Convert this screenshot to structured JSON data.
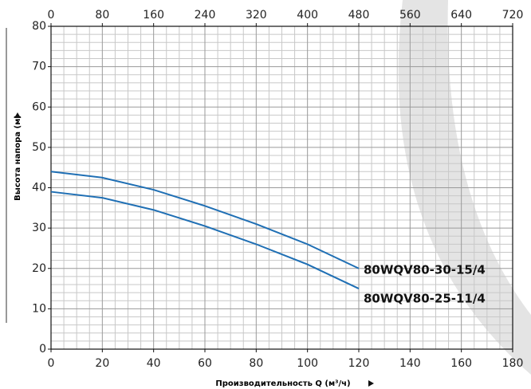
{
  "chart_data": {
    "type": "line",
    "ylabel": "Высота напора (м)",
    "xlabel": "Производительность Q (м³/ч)",
    "x": [
      0,
      20,
      40,
      60,
      80,
      100,
      120
    ],
    "series": [
      {
        "name": "80WQV80-30-15/4",
        "color": "#1f6fb4",
        "values": [
          44,
          42.5,
          39.5,
          35.5,
          31,
          26,
          20
        ]
      },
      {
        "name": "80WQV80-25-11/4",
        "color": "#1f6fb4",
        "values": [
          39,
          37.5,
          34.5,
          30.5,
          26,
          21,
          15
        ]
      }
    ],
    "xlim": [
      0,
      180
    ],
    "xticks": [
      0,
      20,
      40,
      60,
      80,
      100,
      120,
      140,
      160,
      180
    ],
    "x2lim": [
      0,
      720
    ],
    "x2ticks": [
      0,
      80,
      160,
      240,
      320,
      400,
      480,
      560,
      640,
      720
    ],
    "ylim": [
      0,
      80
    ],
    "yticks": [
      0,
      10,
      20,
      30,
      40,
      50,
      60,
      70,
      80
    ],
    "grid": true
  }
}
